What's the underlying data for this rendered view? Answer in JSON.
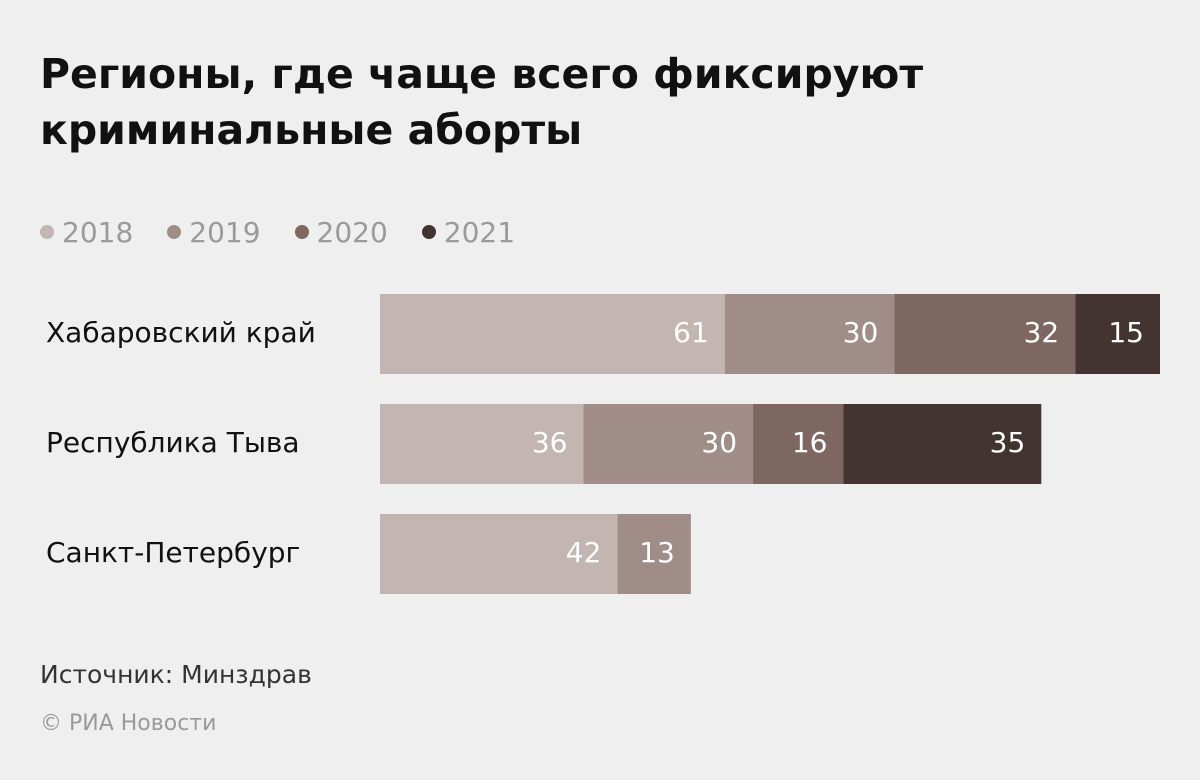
{
  "title_lines": [
    "Регионы, где чаще всего фиксируют",
    "криминальные аборты"
  ],
  "source": "Источник: Минздрав",
  "copyright": "© РИА Новости",
  "chart_data": {
    "type": "bar",
    "orientation": "horizontal",
    "stacked": true,
    "categories": [
      "Хабаровский край",
      "Республика Тыва",
      "Санкт-Петербург"
    ],
    "series": [
      {
        "name": "2018",
        "color": "#c3b5b1",
        "values": [
          61,
          36,
          42
        ]
      },
      {
        "name": "2019",
        "color": "#a08d87",
        "values": [
          30,
          30,
          13
        ]
      },
      {
        "name": "2020",
        "color": "#7e6761",
        "values": [
          32,
          16,
          null
        ]
      },
      {
        "name": "2021",
        "color": "#433331",
        "values": [
          15,
          35,
          null
        ]
      }
    ],
    "legend_position": "top-left",
    "grid": false,
    "axes_visible": false
  }
}
